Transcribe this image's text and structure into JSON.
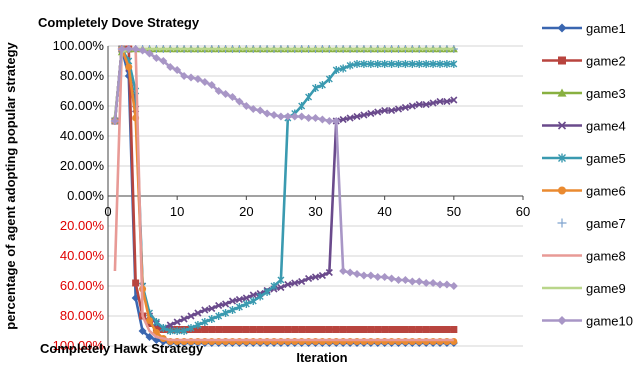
{
  "chart_data": {
    "type": "line",
    "title_top": "Completely Dove Strategy",
    "title_bottom": "Completely Hawk Strategy",
    "xlabel": "Iteration",
    "ylabel": "percentage of agent adopting  popular strategy",
    "xlim": [
      0,
      60
    ],
    "ylim": [
      -100,
      100
    ],
    "x_ticks": [
      0,
      10,
      20,
      30,
      40,
      50,
      60
    ],
    "y_ticks": [
      100,
      80,
      60,
      40,
      20,
      0,
      -20,
      -40,
      -60,
      -80,
      -100
    ],
    "y_tick_labels": [
      "100.00%",
      "80.00%",
      "60.00%",
      "40.00%",
      "20.00%",
      "0.00%",
      "20.00%",
      "40.00%",
      "60.00%",
      "80.00%",
      "100.00%"
    ],
    "negative_tick_color": "#e00000",
    "grid": "horizontal",
    "legend_position": "right",
    "x": [
      1,
      2,
      3,
      4,
      5,
      6,
      7,
      8,
      9,
      10,
      11,
      12,
      13,
      14,
      15,
      16,
      17,
      18,
      19,
      20,
      21,
      22,
      23,
      24,
      25,
      26,
      27,
      28,
      29,
      30,
      31,
      32,
      33,
      34,
      35,
      36,
      37,
      38,
      39,
      40,
      41,
      42,
      43,
      44,
      45,
      46,
      47,
      48,
      49,
      50
    ],
    "series": [
      {
        "name": "game1",
        "color": "#3a66b0",
        "marker": "diamond",
        "values": [
          50,
          98,
          80,
          -68,
          -90,
          -94,
          -96,
          -97,
          -98,
          -98,
          -98,
          -98,
          -98,
          -98,
          -98,
          -98,
          -98,
          -98,
          -98,
          -98,
          -98,
          -98,
          -98,
          -98,
          -98,
          -98,
          -98,
          -98,
          -98,
          -98,
          -98,
          -98,
          -98,
          -98,
          -98,
          -98,
          -98,
          -98,
          -98,
          -98,
          -98,
          -98,
          -98,
          -98,
          -98,
          -98,
          -98,
          -98,
          -98,
          -98
        ]
      },
      {
        "name": "game2",
        "color": "#b8443e",
        "marker": "square",
        "values": [
          50,
          98,
          98,
          -58,
          -80,
          -85,
          -88,
          -89,
          -89,
          -89,
          -89,
          -89,
          -89,
          -89,
          -89,
          -89,
          -89,
          -89,
          -89,
          -89,
          -89,
          -89,
          -89,
          -89,
          -89,
          -89,
          -89,
          -89,
          -89,
          -89,
          -89,
          -89,
          -89,
          -89,
          -89,
          -89,
          -89,
          -89,
          -89,
          -89,
          -89,
          -89,
          -89,
          -89,
          -89,
          -89,
          -89,
          -89,
          -89,
          -89
        ]
      },
      {
        "name": "game3",
        "color": "#88b040",
        "marker": "triangle",
        "values": [
          52,
          96,
          98,
          98,
          98,
          98,
          98,
          98,
          98,
          98,
          98,
          98,
          98,
          98,
          98,
          98,
          98,
          98,
          98,
          98,
          98,
          98,
          98,
          98,
          98,
          98,
          98,
          98,
          98,
          98,
          98,
          98,
          98,
          98,
          98,
          98,
          98,
          98,
          98,
          98,
          98,
          98,
          98,
          98,
          98,
          98,
          98,
          98,
          98,
          98
        ]
      },
      {
        "name": "game4",
        "color": "#6a4a8c",
        "marker": "x",
        "values": [
          50,
          98,
          85,
          58,
          -60,
          -80,
          -85,
          -88,
          -86,
          -84,
          -82,
          -80,
          -78,
          -76,
          -75,
          -73,
          -72,
          -70,
          -69,
          -68,
          -66,
          -65,
          -63,
          -62,
          -61,
          -59,
          -58,
          -57,
          -55,
          -54,
          -53,
          -51,
          50,
          51,
          52,
          53,
          54,
          55,
          56,
          57,
          57,
          58,
          59,
          60,
          61,
          61,
          62,
          63,
          63,
          64
        ]
      },
      {
        "name": "game5",
        "color": "#3a9ab0",
        "marker": "asterisk",
        "values": [
          50,
          98,
          90,
          70,
          -60,
          -78,
          -84,
          -88,
          -90,
          -90,
          -90,
          -88,
          -86,
          -84,
          -82,
          -80,
          -78,
          -76,
          -74,
          -72,
          -70,
          -67,
          -64,
          -60,
          -56,
          52,
          55,
          60,
          66,
          72,
          74,
          78,
          84,
          85,
          87,
          88,
          88,
          88,
          88,
          88,
          88,
          88,
          88,
          88,
          88,
          88,
          88,
          88,
          88,
          88
        ]
      },
      {
        "name": "game6",
        "color": "#ea8a30",
        "marker": "circle",
        "values": [
          50,
          98,
          86,
          52,
          -62,
          -83,
          -91,
          -95,
          -97,
          -97,
          -97,
          -97,
          -97,
          -97,
          -97,
          -97,
          -97,
          -97,
          -97,
          -97,
          -97,
          -97,
          -97,
          -97,
          -97,
          -97,
          -97,
          -97,
          -97,
          -97,
          -97,
          -97,
          -97,
          -97,
          -97,
          -97,
          -97,
          -97,
          -97,
          -97,
          -97,
          -97,
          -97,
          -97,
          -97,
          -97,
          -97,
          -97,
          -97,
          -97
        ]
      },
      {
        "name": "game7",
        "color": "#7fa3cf",
        "marker": "plus",
        "values": [
          50,
          98,
          98,
          98,
          98,
          98,
          98,
          98,
          98,
          98,
          98,
          98,
          98,
          98,
          98,
          98,
          98,
          98,
          98,
          98,
          98,
          98,
          98,
          98,
          98,
          98,
          98,
          98,
          98,
          98,
          98,
          98,
          98,
          98,
          98,
          98,
          98,
          98,
          98,
          98,
          98,
          98,
          98,
          98,
          98,
          98,
          98,
          98,
          98,
          98
        ]
      },
      {
        "name": "game8",
        "color": "#e89a96",
        "marker": "none",
        "values": [
          -50,
          98,
          98,
          98,
          -80,
          -90,
          -94,
          -95,
          -96,
          -96,
          -96,
          -96,
          -96,
          -96,
          -96,
          -96,
          -96,
          -96,
          -96,
          -96,
          -96,
          -96,
          -96,
          -96,
          -96,
          -96,
          -96,
          -96,
          -96,
          -96,
          -96,
          -96,
          -96,
          -96,
          -96,
          -96,
          -96,
          -96,
          -96,
          -96,
          -96,
          -96,
          -96,
          -96,
          -96,
          -96,
          -96,
          -96,
          -96,
          -96
        ]
      },
      {
        "name": "game9",
        "color": "#b9d68a",
        "marker": "none",
        "values": [
          52,
          96,
          98,
          98,
          98,
          98,
          98,
          98,
          98,
          98,
          98,
          98,
          98,
          98,
          98,
          98,
          98,
          98,
          98,
          98,
          98,
          98,
          98,
          98,
          98,
          98,
          98,
          98,
          98,
          98,
          98,
          98,
          98,
          98,
          98,
          98,
          98,
          98,
          98,
          98,
          98,
          98,
          98,
          98,
          98,
          98,
          98,
          98,
          98,
          98
        ]
      },
      {
        "name": "game10",
        "color": "#a896c6",
        "marker": "diamond",
        "values": [
          50,
          98,
          98,
          98,
          97,
          95,
          92,
          90,
          86,
          84,
          80,
          79,
          78,
          76,
          74,
          70,
          68,
          66,
          63,
          60,
          58,
          57,
          55,
          54,
          53,
          53,
          53,
          53,
          52,
          52,
          51,
          50,
          50,
          -50,
          -51,
          -52,
          -53,
          -53,
          -54,
          -54,
          -55,
          -56,
          -56,
          -57,
          -57,
          -58,
          -58,
          -59,
          -59,
          -60
        ]
      }
    ]
  }
}
